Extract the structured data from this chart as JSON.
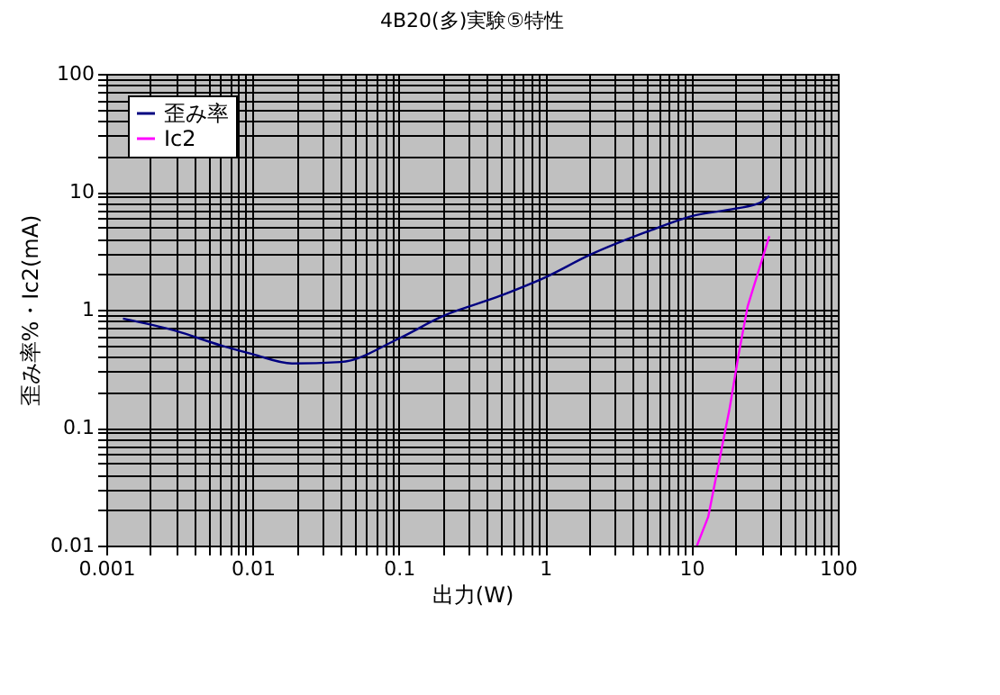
{
  "chart_data": {
    "type": "line",
    "title": "4B20(多)実験⑤特性",
    "xlabel": "出力(W)",
    "ylabel": "歪み率%・Ic2(mA)",
    "series": [
      {
        "name": "歪み率",
        "color": "#000080",
        "x": [
          0.0013,
          0.003,
          0.006,
          0.01,
          0.0186,
          0.04,
          0.1,
          0.195,
          0.5,
          1,
          2,
          5,
          10,
          20,
          29,
          34
        ],
        "values": [
          0.84,
          0.66,
          0.5,
          0.42,
          0.35,
          0.36,
          0.57,
          0.87,
          1.32,
          1.88,
          2.9,
          4.6,
          6.2,
          7.2,
          8.0,
          9.2
        ]
      },
      {
        "name": "Ic2",
        "color": "#ff00ff",
        "x": [
          10.9,
          13,
          18.2,
          21,
          24.2,
          34
        ],
        "values": [
          0.01,
          0.0175,
          0.145,
          0.42,
          1.07,
          4.2
        ]
      }
    ],
    "xlim": [
      0.001,
      100
    ],
    "ylim": [
      0.01,
      100
    ],
    "xticks": [
      0.001,
      {
        "value": 0.002,
        "label": null
      },
      {
        "value": 0.003,
        "label": null
      },
      {
        "value": 0.004,
        "label": null
      },
      {
        "value": 0.005,
        "label": null
      },
      {
        "value": 0.006,
        "label": null
      },
      {
        "value": 0.007,
        "label": null
      },
      {
        "value": 0.008,
        "label": null
      },
      {
        "value": 0.009,
        "label": null
      },
      0.01,
      {
        "value": 0.02,
        "label": null
      },
      {
        "value": 0.03,
        "label": null
      },
      {
        "value": 0.04,
        "label": null
      },
      {
        "value": 0.05,
        "label": null
      },
      {
        "value": 0.06,
        "label": null
      },
      {
        "value": 0.07,
        "label": null
      },
      {
        "value": 0.08,
        "label": null
      },
      {
        "value": 0.09,
        "label": null
      },
      0.1,
      {
        "value": 0.2,
        "label": null
      },
      {
        "value": 0.3,
        "label": null
      },
      {
        "value": 0.4,
        "label": null
      },
      {
        "value": 0.5,
        "label": null
      },
      {
        "value": 0.6,
        "label": null
      },
      {
        "value": 0.7,
        "label": null
      },
      {
        "value": 0.8,
        "label": null
      },
      {
        "value": 0.9,
        "label": null
      },
      1,
      {
        "value": 2,
        "label": null
      },
      {
        "value": 3,
        "label": null
      },
      {
        "value": 4,
        "label": null
      },
      {
        "value": 5,
        "label": null
      },
      {
        "value": 6,
        "label": null
      },
      {
        "value": 7,
        "label": null
      },
      {
        "value": 8,
        "label": null
      },
      {
        "value": 9,
        "label": null
      },
      10,
      {
        "value": 20,
        "label": null
      },
      {
        "value": 30,
        "label": null
      },
      {
        "value": 40,
        "label": null
      },
      {
        "value": 50,
        "label": null
      },
      {
        "value": 60,
        "label": null
      },
      {
        "value": 70,
        "label": null
      },
      {
        "value": 80,
        "label": null
      },
      {
        "value": 90,
        "label": null
      },
      100
    ],
    "yticks": [
      0.01,
      {
        "value": 0.02,
        "label": null
      },
      {
        "value": 0.03,
        "label": null
      },
      {
        "value": 0.04,
        "label": null
      },
      {
        "value": 0.05,
        "label": null
      },
      {
        "value": 0.06,
        "label": null
      },
      {
        "value": 0.07,
        "label": null
      },
      {
        "value": 0.08,
        "label": null
      },
      {
        "value": 0.09,
        "label": null
      },
      0.1,
      {
        "value": 0.2,
        "label": null
      },
      {
        "value": 0.3,
        "label": null
      },
      {
        "value": 0.4,
        "label": null
      },
      {
        "value": 0.5,
        "label": null
      },
      {
        "value": 0.6,
        "label": null
      },
      {
        "value": 0.7,
        "label": null
      },
      {
        "value": 0.8,
        "label": null
      },
      {
        "value": 0.9,
        "label": null
      },
      1,
      {
        "value": 2,
        "label": null
      },
      {
        "value": 3,
        "label": null
      },
      {
        "value": 4,
        "label": null
      },
      {
        "value": 5,
        "label": null
      },
      {
        "value": 6,
        "label": null
      },
      {
        "value": 7,
        "label": null
      },
      {
        "value": 8,
        "label": null
      },
      {
        "value": 9,
        "label": null
      },
      10,
      {
        "value": 20,
        "label": null
      },
      {
        "value": 30,
        "label": null
      },
      {
        "value": 40,
        "label": null
      },
      {
        "value": 50,
        "label": null
      },
      {
        "value": 60,
        "label": null
      },
      {
        "value": 70,
        "label": null
      },
      {
        "value": 80,
        "label": null
      },
      {
        "value": 90,
        "label": null
      },
      100
    ],
    "log": "xy",
    "grid": true,
    "legend": "top left"
  }
}
